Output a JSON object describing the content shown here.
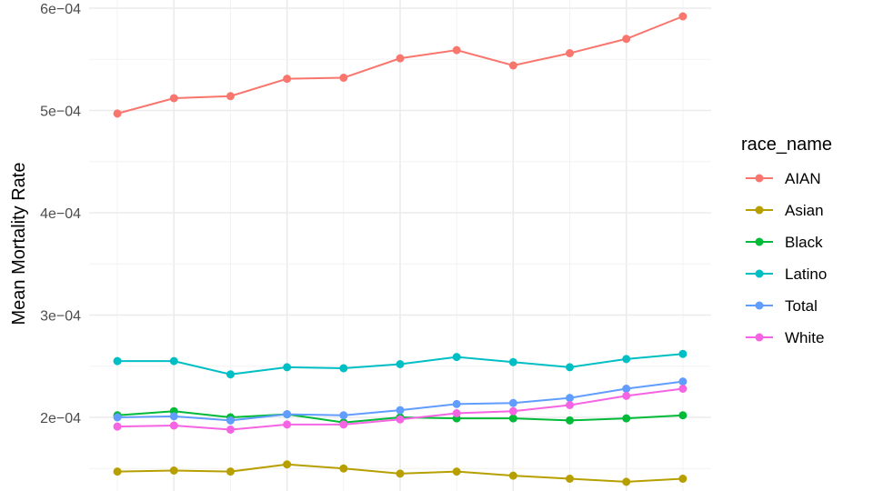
{
  "chart_data": {
    "type": "line",
    "title": "",
    "xlabel": "",
    "ylabel": "Mean Mortality Rate",
    "x": [
      1,
      2,
      3,
      4,
      5,
      6,
      7,
      8,
      9,
      10,
      11
    ],
    "xlim": [
      0.5,
      11.5
    ],
    "ylim": [
      0.000128,
      0.000608
    ],
    "yticks": [
      0.0002,
      0.0003,
      0.0004,
      0.0005,
      0.0006
    ],
    "ytick_labels": [
      "2e−04",
      "3e−04",
      "4e−04",
      "5e−04",
      "6e−04"
    ],
    "grid": true,
    "legend": {
      "title": "race_name",
      "position": "right"
    },
    "series": [
      {
        "name": "AIAN",
        "color": "#F8766D",
        "values": [
          0.000497,
          0.000512,
          0.000514,
          0.000531,
          0.000532,
          0.000551,
          0.000559,
          0.000544,
          0.000556,
          0.00057,
          0.000592
        ]
      },
      {
        "name": "Asian",
        "color": "#B79F00",
        "values": [
          0.000147,
          0.000148,
          0.000147,
          0.000154,
          0.00015,
          0.000145,
          0.000147,
          0.000143,
          0.00014,
          0.000137,
          0.00014
        ]
      },
      {
        "name": "Black",
        "color": "#00BA38",
        "values": [
          0.000202,
          0.000206,
          0.0002,
          0.000203,
          0.000195,
          0.0002,
          0.000199,
          0.000199,
          0.000197,
          0.000199,
          0.000202
        ]
      },
      {
        "name": "Latino",
        "color": "#00BFC4",
        "values": [
          0.000255,
          0.000255,
          0.000242,
          0.000249,
          0.000248,
          0.000252,
          0.000259,
          0.000254,
          0.000249,
          0.000257,
          0.000262
        ]
      },
      {
        "name": "Total",
        "color": "#619CFF",
        "values": [
          0.0002,
          0.000201,
          0.000197,
          0.000203,
          0.000202,
          0.000207,
          0.000213,
          0.000214,
          0.000219,
          0.000228,
          0.000235
        ]
      },
      {
        "name": "White",
        "color": "#F564E3",
        "values": [
          0.000191,
          0.000192,
          0.000188,
          0.000193,
          0.000193,
          0.000198,
          0.000204,
          0.000206,
          0.000212,
          0.000221,
          0.000228
        ]
      }
    ]
  }
}
